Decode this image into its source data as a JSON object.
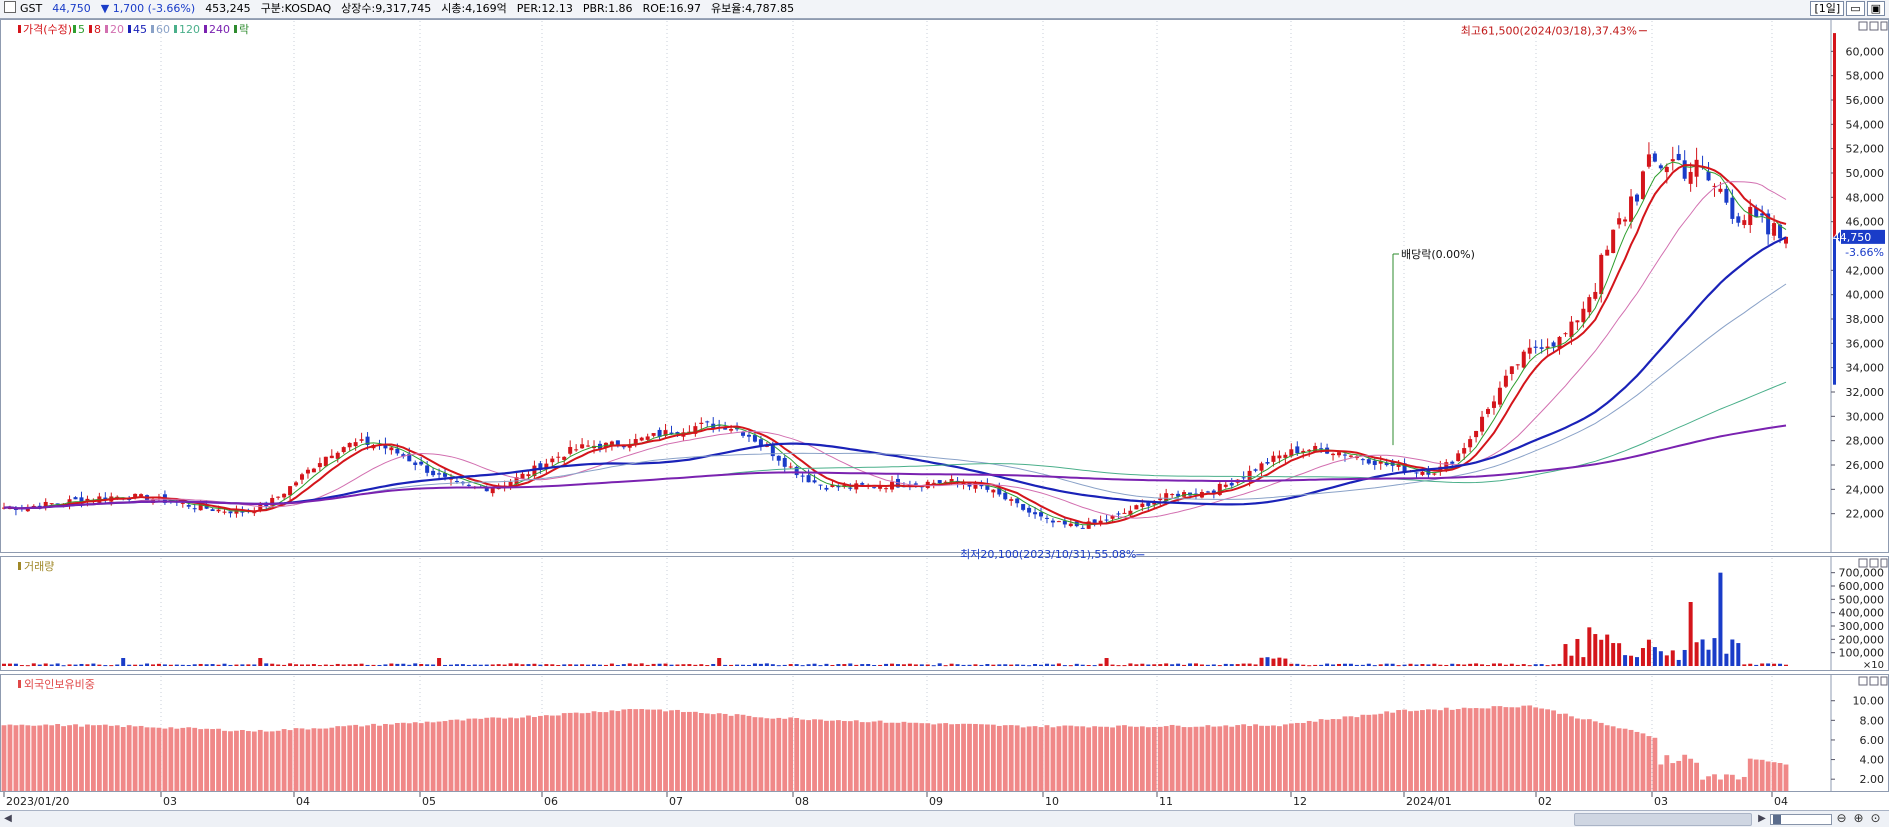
{
  "topbar": {
    "code": "GST",
    "price": "44,750",
    "change": "▼ 1,700 (-3.66%)",
    "volume": "453,245",
    "market": "구분:KOSDAQ",
    "shares": "상장수:9,317,745",
    "mcap": "시총:4,169억",
    "per": "PER:12.13",
    "pbr": "PBR:1.86",
    "roe": "ROE:16.97",
    "float": "유보율:4,787.85",
    "period": "[1일]",
    "btn_min": "▭",
    "btn_max": "▣",
    "colors": {
      "up": "#d4151b",
      "down": "#1a3cc8"
    }
  },
  "price_legend": [
    {
      "label": "가격(수정)",
      "color": "#d4151b"
    },
    {
      "label": "5",
      "color": "#2e9e2e"
    },
    {
      "label": "8",
      "color": "#d4151b"
    },
    {
      "label": "20",
      "color": "#d26fb0"
    },
    {
      "label": "45",
      "color": "#1a22b8"
    },
    {
      "label": "60",
      "color": "#8aa2c8"
    },
    {
      "label": "120",
      "color": "#4aaf8a"
    },
    {
      "label": "240",
      "color": "#7a22b0"
    },
    {
      "label": "락",
      "color": "#2e8b2e"
    }
  ],
  "volume_legend": "거래량",
  "foreign_legend": "외국인보유비중",
  "price_labels": {
    "high": "최고61,500(2024/03/18),37.43%",
    "low": "최저20,100(2023/10/31),55.08%",
    "dividend": "배당락(0.00%)",
    "current": "44,750",
    "current_change": "-3.66%"
  },
  "x_axis_labels": [
    "2023/01/20",
    "03",
    "04",
    "05",
    "06",
    "07",
    "08",
    "09",
    "10",
    "11",
    "12",
    "2024/01",
    "02",
    "03",
    "04"
  ],
  "price_ticks": [
    "60,000",
    "58,000",
    "56,000",
    "54,000",
    "52,000",
    "50,000",
    "48,000",
    "46,000",
    "42,000",
    "40,000",
    "38,000",
    "36,000",
    "34,000",
    "32,000",
    "30,000",
    "28,000",
    "26,000",
    "24,000",
    "22,000"
  ],
  "volume_ticks": [
    "700,000",
    "600,000",
    "500,000",
    "400,000",
    "300,000",
    "200,000",
    "100,000"
  ],
  "volume_unit": "×10",
  "foreign_ticks": [
    "10.00",
    "8.00",
    "6.00",
    "4.00",
    "2.00"
  ],
  "chart_data": {
    "type": "candlestick",
    "title": "GST",
    "x_start": "2023/01/20",
    "x_end": "2024/04",
    "price_range": [
      20100,
      61500
    ],
    "price_ylim": [
      20000,
      62000
    ],
    "monthly_price_path": [
      {
        "month": "2023/01",
        "close": 22500
      },
      {
        "month": "2023/02",
        "close": 23400
      },
      {
        "month": "2023/03",
        "close": 22200
      },
      {
        "month": "2023/04",
        "close": 27800
      },
      {
        "month": "2023/05",
        "close": 24100
      },
      {
        "month": "2023/06",
        "close": 27600
      },
      {
        "month": "2023/07",
        "close": 29300
      },
      {
        "month": "2023/08",
        "close": 24200
      },
      {
        "month": "2023/09",
        "close": 24600
      },
      {
        "month": "2023/10",
        "close": 21000
      },
      {
        "month": "2023/11",
        "close": 23700
      },
      {
        "month": "2023/12",
        "close": 27300
      },
      {
        "month": "2024/01",
        "close": 25500
      },
      {
        "month": "2024/02",
        "close": 36000
      },
      {
        "month": "2024/03",
        "close": 51000
      },
      {
        "month": "2024/04",
        "close": 44750
      }
    ],
    "moving_averages": [
      "5",
      "8",
      "20",
      "45",
      "60",
      "120",
      "240"
    ],
    "volume_ylim": [
      0,
      750000
    ],
    "volume_spikes": [
      {
        "month": "2024/02",
        "value": 290000
      },
      {
        "month": "2024/03",
        "value": 480000
      },
      {
        "month": "2024/03",
        "value": 700000
      }
    ],
    "foreign_ratio_ylim": [
      1,
      11.5
    ],
    "foreign_ratio_path": [
      {
        "month": "2023/01",
        "value": 7.6
      },
      {
        "month": "2023/03",
        "value": 7.4
      },
      {
        "month": "2023/04",
        "value": 6.9
      },
      {
        "month": "2023/05",
        "value": 7.6
      },
      {
        "month": "2023/06",
        "value": 8.3
      },
      {
        "month": "2023/07",
        "value": 9.2
      },
      {
        "month": "2023/08",
        "value": 8.3
      },
      {
        "month": "2023/09",
        "value": 7.8
      },
      {
        "month": "2023/10",
        "value": 7.4
      },
      {
        "month": "2023/11",
        "value": 7.4
      },
      {
        "month": "2023/12",
        "value": 7.5
      },
      {
        "month": "2024/01",
        "value": 9.0
      },
      {
        "month": "2024/02",
        "value": 9.5
      },
      {
        "month": "2024/03",
        "value": 6.2
      },
      {
        "month": "2024/04",
        "value": 3.4
      }
    ]
  }
}
